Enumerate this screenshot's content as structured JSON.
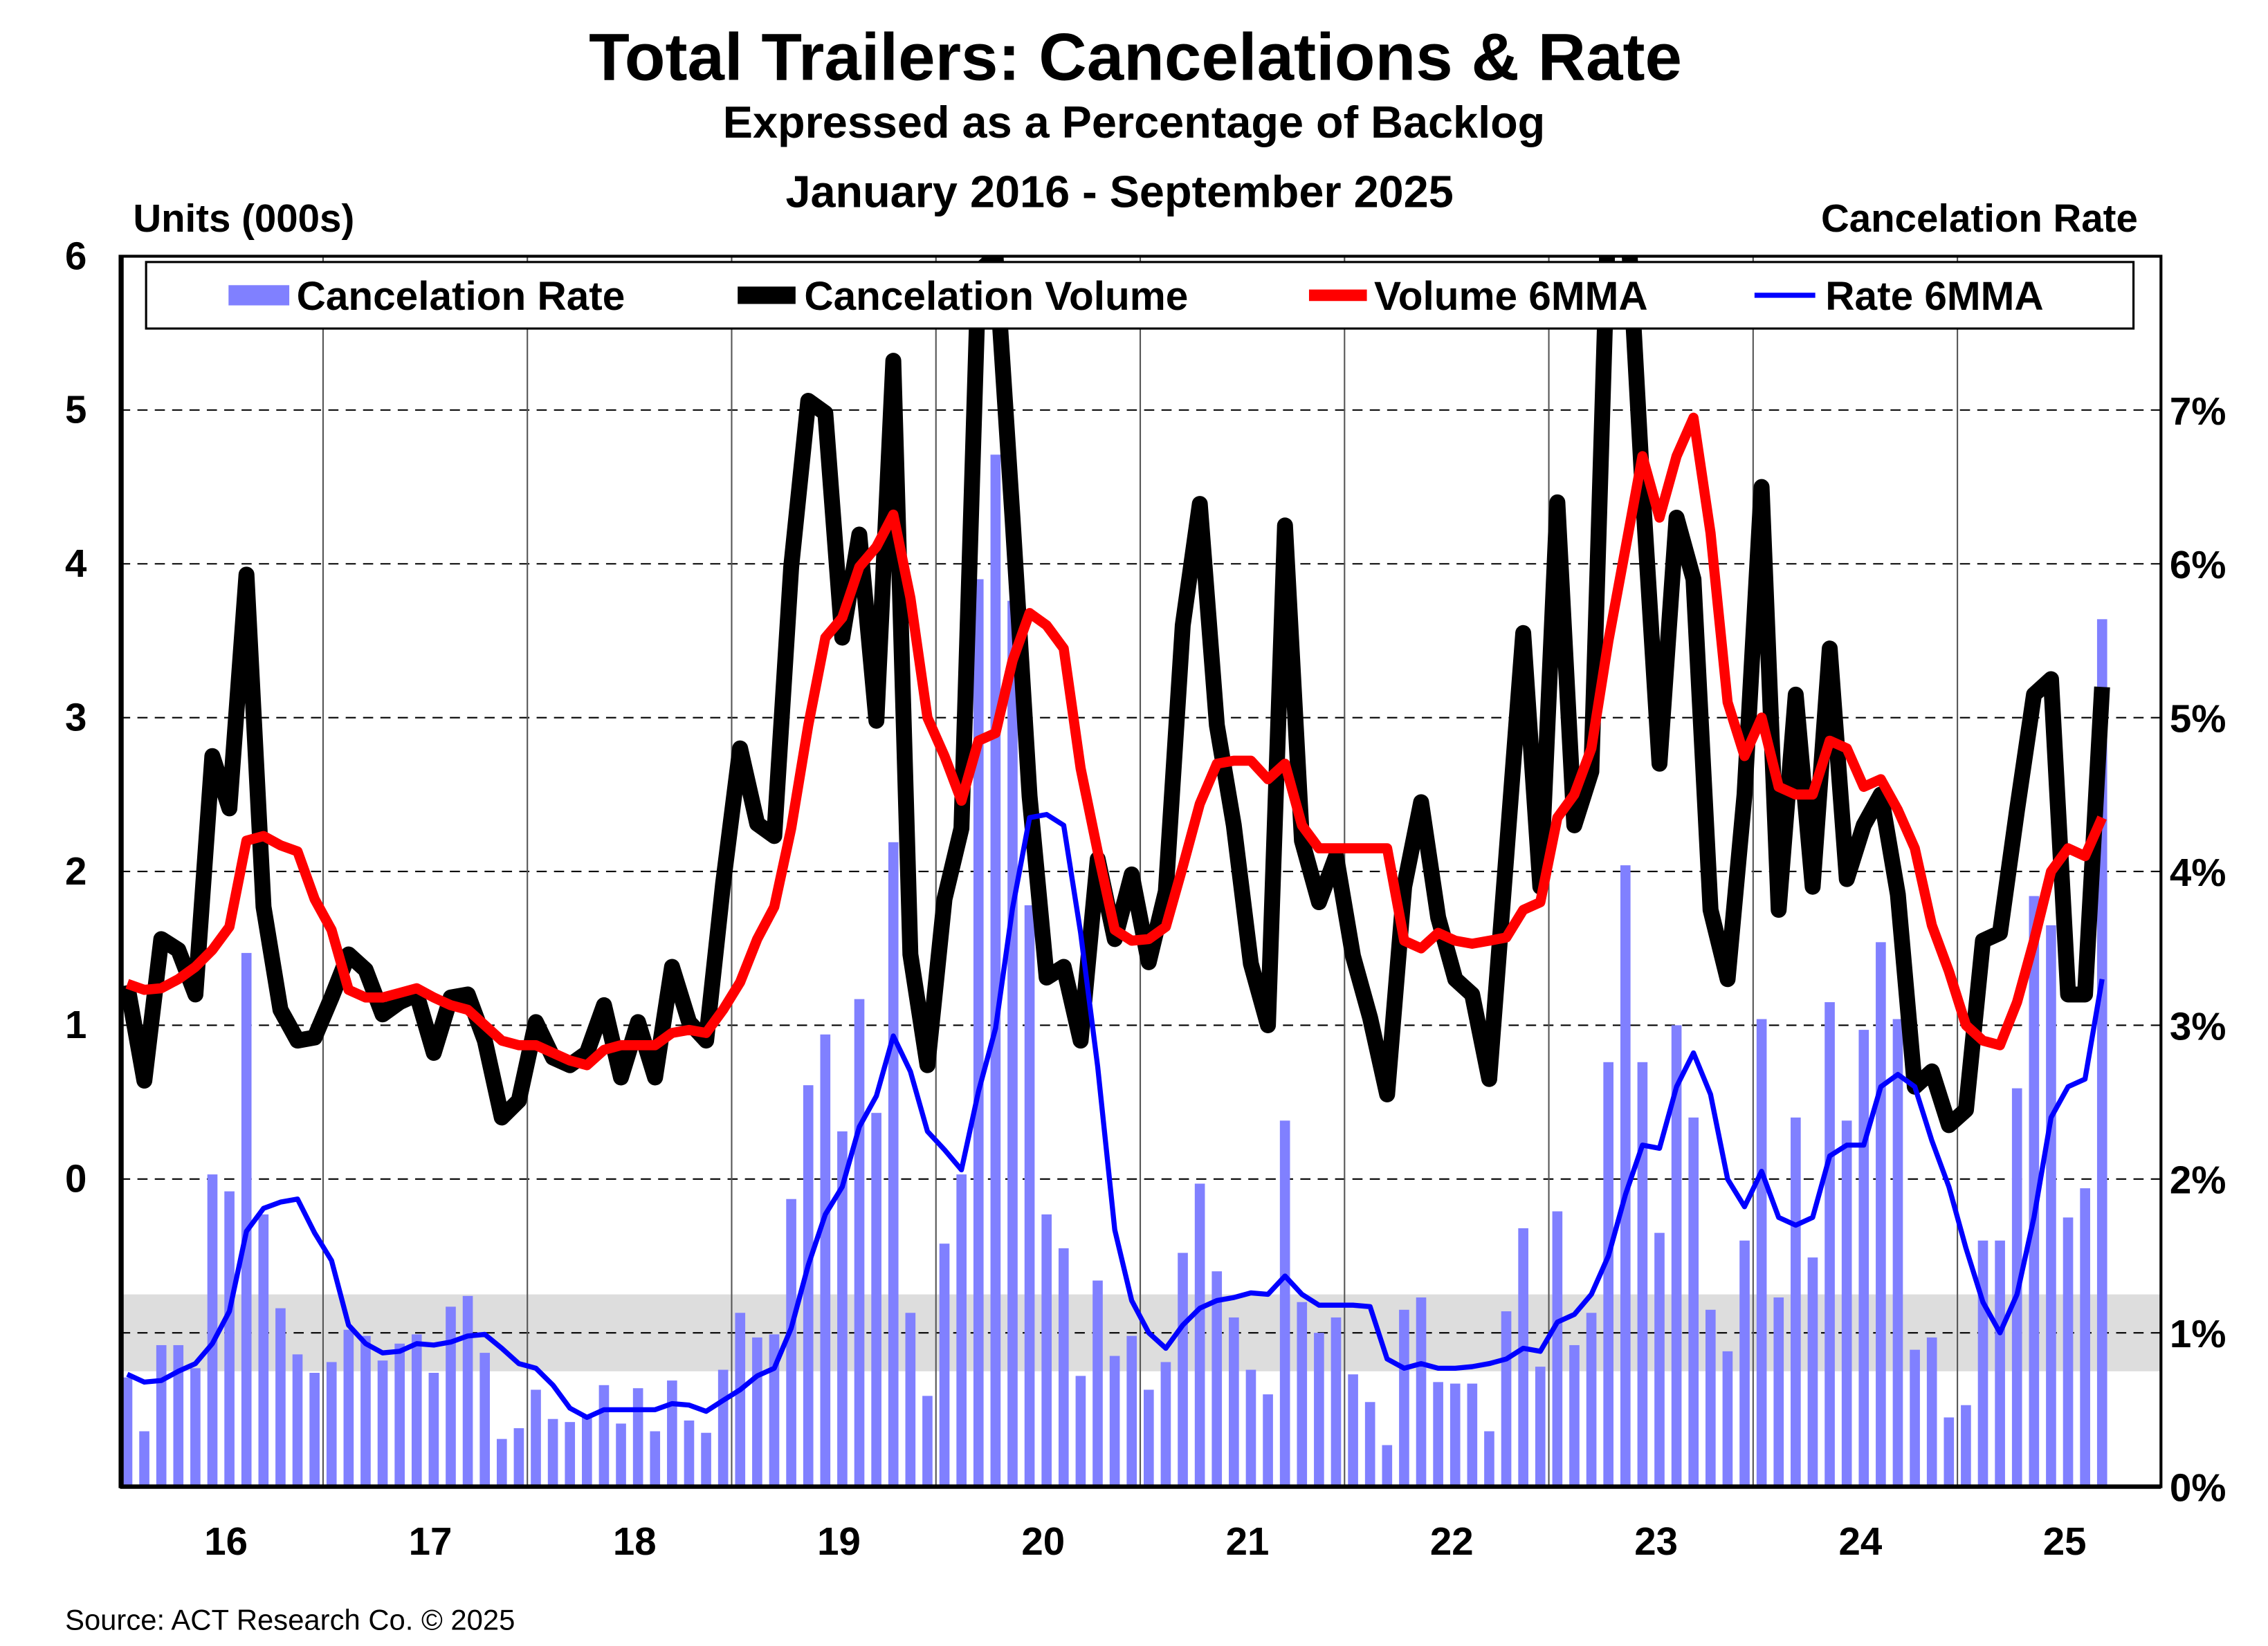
{
  "chart_data": {
    "type": "bar+line",
    "title": "Total Trailers: Cancelations & Rate",
    "subtitle": "Expressed as a Percentage of Backlog",
    "period": "January 2016 - September 2025",
    "ylabel_left": "Units (000s)",
    "ylabel_right": "Cancelation Rate",
    "source": "Source: ACT Research Co. © 2025",
    "x_start": "2016-01",
    "x_end": "2025-09",
    "x_tick_labels": [
      "16",
      "17",
      "18",
      "19",
      "20",
      "21",
      "22",
      "23",
      "24",
      "25"
    ],
    "y_left_range": [
      -2,
      6
    ],
    "y_left_ticks": [
      "0",
      "1",
      "2",
      "3",
      "4",
      "5",
      "6"
    ],
    "y_right_range": [
      0,
      8
    ],
    "y_right_ticks": [
      "0%",
      "1%",
      "2%",
      "3%",
      "4%",
      "5%",
      "6%",
      "7%"
    ],
    "grid": "dashed horizontal, solid vertical at year boundaries",
    "shaded_band_rate_pct": [
      0.75,
      1.25
    ],
    "legend_position": "top",
    "legend": [
      "Cancelation Rate",
      "Cancelation Volume",
      "Volume 6MMA",
      "Rate 6MMA"
    ],
    "colors": {
      "rate_bars": "#8080FF",
      "volume": "#000000",
      "volume_6mma": "#FF0000",
      "rate_6mma": "#0000FF",
      "band": "#DDDDDD"
    },
    "series": [
      {
        "name": "Cancelation Rate",
        "type": "bar",
        "axis": "right",
        "unit": "%",
        "values": [
          0.71,
          0.36,
          0.92,
          0.92,
          0.77,
          2.03,
          1.92,
          3.47,
          1.77,
          1.16,
          0.86,
          0.74,
          0.81,
          1.02,
          0.98,
          0.82,
          0.93,
          0.99,
          0.74,
          1.17,
          1.24,
          0.87,
          0.31,
          0.38,
          0.63,
          0.44,
          0.42,
          0.46,
          0.66,
          0.41,
          0.64,
          0.36,
          0.69,
          0.43,
          0.35,
          0.76,
          1.13,
          0.97,
          0.99,
          1.87,
          2.61,
          2.94,
          2.31,
          3.17,
          2.43,
          4.19,
          1.13,
          0.59,
          1.58,
          2.03,
          5.9,
          6.71,
          5.76,
          3.78,
          1.77,
          1.55,
          0.72,
          1.34,
          0.85,
          0.98,
          0.63,
          0.81,
          1.52,
          1.97,
          1.4,
          1.1,
          0.76,
          0.6,
          2.38,
          1.2,
          1.0,
          1.1,
          0.73,
          0.55,
          0.27,
          1.15,
          1.23,
          0.68,
          0.67,
          0.67,
          0.36,
          1.14,
          1.68,
          0.78,
          1.79,
          0.92,
          1.13,
          2.76,
          4.04,
          2.76,
          1.65,
          3.0,
          2.4,
          1.15,
          0.88,
          1.6,
          3.04,
          1.23,
          2.4,
          1.49,
          3.15,
          2.38,
          2.97,
          3.54,
          3.04,
          0.89,
          0.97,
          0.45,
          0.53,
          1.6,
          1.6,
          2.59,
          3.84,
          3.65,
          1.75,
          1.94,
          5.64
        ]
      },
      {
        "name": "Cancelation Volume",
        "type": "line",
        "axis": "left",
        "unit": "000s",
        "values": [
          1.26,
          0.64,
          1.56,
          1.49,
          1.2,
          2.75,
          2.41,
          3.93,
          1.77,
          1.1,
          0.9,
          0.92,
          1.18,
          1.46,
          1.36,
          1.07,
          1.15,
          1.2,
          0.82,
          1.18,
          1.2,
          0.9,
          0.4,
          0.51,
          1.02,
          0.79,
          0.74,
          0.82,
          1.13,
          0.66,
          1.02,
          0.66,
          1.38,
          1.02,
          0.9,
          1.92,
          2.8,
          2.31,
          2.23,
          3.98,
          5.06,
          4.98,
          3.52,
          4.19,
          2.98,
          5.32,
          1.46,
          0.74,
          1.82,
          2.28,
          5.9,
          6.0,
          4.3,
          2.49,
          1.31,
          1.38,
          0.9,
          2.08,
          1.56,
          1.98,
          1.41,
          1.87,
          3.6,
          4.39,
          2.95,
          2.3,
          1.4,
          1.0,
          4.25,
          2.2,
          1.8,
          2.1,
          1.45,
          1.05,
          0.55,
          1.9,
          2.45,
          1.7,
          1.3,
          1.2,
          0.65,
          2.1,
          3.55,
          1.9,
          4.4,
          2.3,
          2.65,
          6.3,
          6.5,
          4.5,
          2.7,
          4.3,
          3.9,
          1.75,
          1.3,
          2.5,
          4.5,
          1.75,
          3.15,
          1.9,
          3.45,
          1.95,
          2.3,
          2.5,
          1.85,
          0.6,
          0.7,
          0.35,
          0.45,
          1.55,
          1.6,
          2.4,
          3.15,
          3.25,
          1.2,
          1.2,
          3.2
        ]
      },
      {
        "name": "Volume 6MMA",
        "type": "line",
        "axis": "left",
        "unit": "000s",
        "values": [
          1.27,
          1.23,
          1.24,
          1.3,
          1.38,
          1.49,
          1.64,
          2.2,
          2.23,
          2.17,
          2.13,
          1.82,
          1.62,
          1.23,
          1.18,
          1.18,
          1.21,
          1.24,
          1.18,
          1.13,
          1.1,
          1.0,
          0.9,
          0.87,
          0.87,
          0.82,
          0.77,
          0.74,
          0.84,
          0.87,
          0.87,
          0.87,
          0.95,
          0.97,
          0.95,
          1.1,
          1.28,
          1.56,
          1.77,
          2.28,
          2.95,
          3.52,
          3.65,
          3.98,
          4.11,
          4.32,
          3.78,
          3.0,
          2.75,
          2.46,
          2.85,
          2.9,
          3.37,
          3.68,
          3.6,
          3.45,
          2.67,
          2.13,
          1.62,
          1.55,
          1.56,
          1.64,
          2.03,
          2.44,
          2.7,
          2.72,
          2.72,
          2.6,
          2.7,
          2.3,
          2.15,
          2.15,
          2.15,
          2.15,
          2.15,
          1.55,
          1.5,
          1.6,
          1.55,
          1.53,
          1.55,
          1.57,
          1.75,
          1.8,
          2.35,
          2.5,
          2.8,
          3.5,
          4.1,
          4.7,
          4.3,
          4.7,
          4.95,
          4.2,
          3.1,
          2.75,
          3.0,
          2.55,
          2.5,
          2.5,
          2.85,
          2.8,
          2.55,
          2.6,
          2.4,
          2.15,
          1.65,
          1.35,
          1.0,
          0.9,
          0.87,
          1.15,
          1.55,
          2.0,
          2.15,
          2.1,
          2.35
        ]
      },
      {
        "name": "Rate 6MMA",
        "type": "line",
        "axis": "right",
        "unit": "%",
        "values": [
          0.73,
          0.68,
          0.69,
          0.75,
          0.8,
          0.93,
          1.14,
          1.66,
          1.81,
          1.85,
          1.87,
          1.65,
          1.47,
          1.05,
          0.93,
          0.87,
          0.88,
          0.93,
          0.92,
          0.94,
          0.98,
          0.99,
          0.9,
          0.8,
          0.77,
          0.66,
          0.51,
          0.45,
          0.5,
          0.5,
          0.5,
          0.5,
          0.54,
          0.53,
          0.49,
          0.56,
          0.63,
          0.72,
          0.77,
          1.03,
          1.44,
          1.77,
          1.95,
          2.34,
          2.54,
          2.93,
          2.7,
          2.31,
          2.19,
          2.06,
          2.57,
          2.98,
          3.76,
          4.35,
          4.37,
          4.3,
          3.6,
          2.73,
          1.67,
          1.21,
          1.0,
          0.9,
          1.05,
          1.16,
          1.21,
          1.23,
          1.26,
          1.25,
          1.37,
          1.25,
          1.18,
          1.18,
          1.18,
          1.17,
          0.83,
          0.77,
          0.8,
          0.77,
          0.77,
          0.78,
          0.8,
          0.83,
          0.9,
          0.88,
          1.07,
          1.12,
          1.25,
          1.5,
          1.9,
          2.22,
          2.2,
          2.6,
          2.82,
          2.55,
          2.0,
          1.82,
          2.05,
          1.75,
          1.7,
          1.75,
          2.15,
          2.22,
          2.22,
          2.6,
          2.68,
          2.6,
          2.25,
          1.95,
          1.55,
          1.2,
          1.0,
          1.25,
          1.75,
          2.4,
          2.6,
          2.65,
          3.3
        ]
      }
    ]
  }
}
